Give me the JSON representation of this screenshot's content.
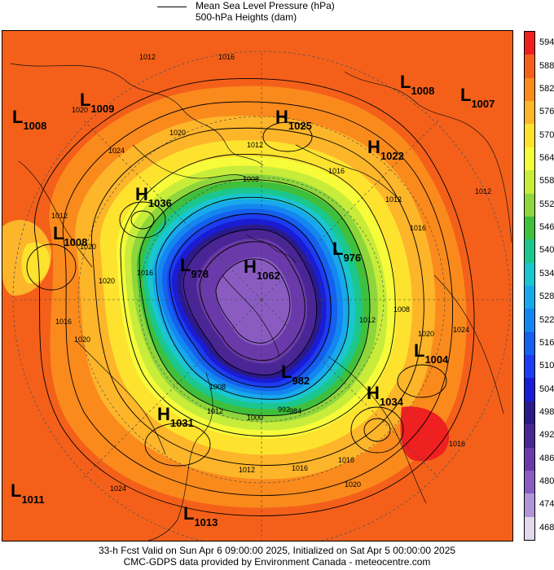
{
  "legend": {
    "mslp_label": "Mean Sea Level Pressure (hPa)",
    "heights_label": "500-hPa Heights (dam)"
  },
  "colorbar": {
    "values": [
      "594",
      "588",
      "582",
      "576",
      "570",
      "564",
      "558",
      "552",
      "546",
      "540",
      "534",
      "528",
      "522",
      "516",
      "510",
      "504",
      "498",
      "492",
      "486",
      "480",
      "474",
      "468"
    ],
    "colors": [
      "#ee2020",
      "#f4601a",
      "#fa8a1c",
      "#fdb52a",
      "#fde22e",
      "#f6fb3a",
      "#c8ec3a",
      "#8ed63c",
      "#3fbf3c",
      "#1cc78e",
      "#1ac6cf",
      "#18a8ec",
      "#1486f0",
      "#1560ee",
      "#1c3cf0",
      "#1a1cd4",
      "#2a1a8c",
      "#4a2596",
      "#6a3aaa",
      "#8a5cc2",
      "#b294d8",
      "#e2d8ee"
    ]
  },
  "pressure_systems": [
    {
      "type": "L",
      "value": "1009"
    },
    {
      "type": "L",
      "value": "1008"
    },
    {
      "type": "L",
      "value": "1008"
    },
    {
      "type": "L",
      "value": "1007"
    },
    {
      "type": "H",
      "value": "1025"
    },
    {
      "type": "H",
      "value": "1022"
    },
    {
      "type": "H",
      "value": "1036"
    },
    {
      "type": "L",
      "value": "1008"
    },
    {
      "type": "L",
      "value": "978"
    },
    {
      "type": "H",
      "value": "1062"
    },
    {
      "type": "L",
      "value": "976"
    },
    {
      "type": "L",
      "value": "1004"
    },
    {
      "type": "L",
      "value": "982"
    },
    {
      "type": "H",
      "value": "1034"
    },
    {
      "type": "H",
      "value": "1031"
    },
    {
      "type": "L",
      "value": "1011"
    },
    {
      "type": "L",
      "value": "1013"
    }
  ],
  "isobar_labels": [
    "1012",
    "1016",
    "1012",
    "1020",
    "1024",
    "1012",
    "1016",
    "1020",
    "1016",
    "1020",
    "1012",
    "1008",
    "1016",
    "1020",
    "1024",
    "1016",
    "1012",
    "1008",
    "1000",
    "992",
    "984",
    "1016",
    "1016",
    "1012",
    "1008",
    "1012",
    "1020",
    "1024",
    "1020",
    "1016",
    "1020",
    "1012"
  ],
  "footer": {
    "line1": "33-h Fcst Valid on Sun Apr  6 09:00:00 2025, Initialized on Sat Apr  5 00:00:00 2025",
    "line2": "CMC-GDPS data provided by Environment Canada - meteocentre.com"
  }
}
